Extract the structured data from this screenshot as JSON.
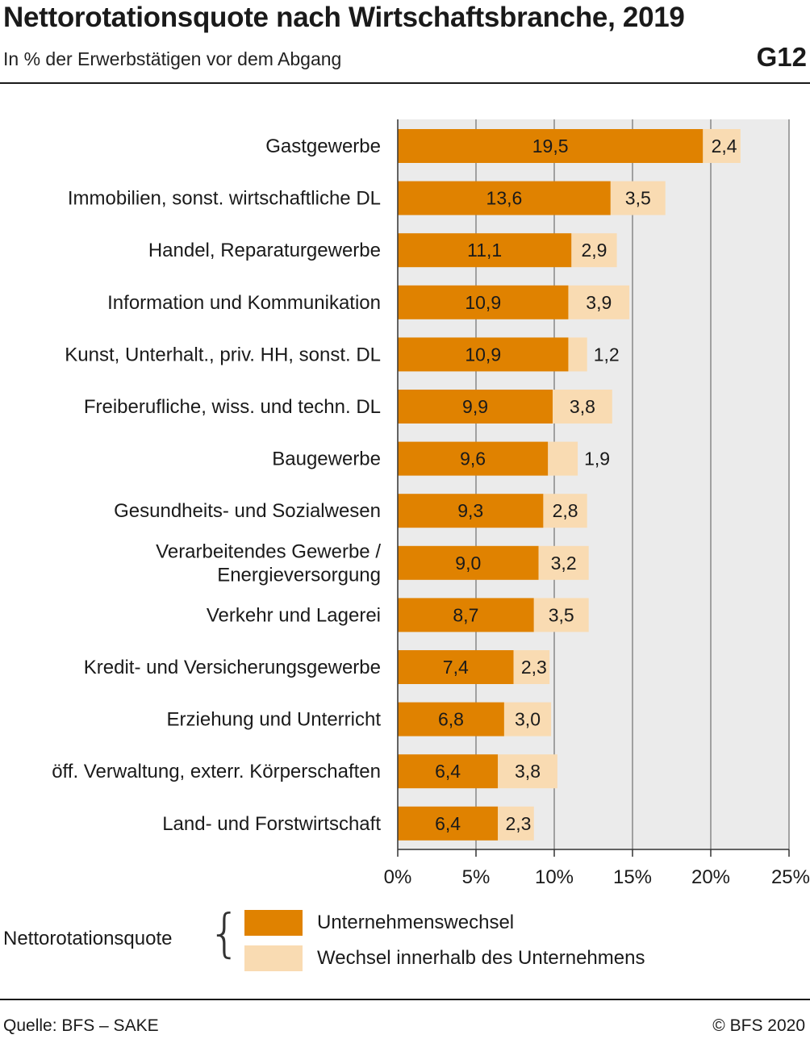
{
  "header": {
    "title": "Nettorotationsquote nach Wirtschaftsbranche, 2019",
    "subtitle": "In % der Erwerbstätigen vor dem Abgang",
    "figure_id": "G12"
  },
  "legend": {
    "title": "Nettorotationsquote",
    "items": [
      "Unternehmenswechsel",
      "Wechsel innerhalb des Unternehmens"
    ]
  },
  "footer": {
    "source": "Quelle: BFS – SAKE",
    "copyright": "© BFS 2020"
  },
  "colors": {
    "series1": "#e08200",
    "series2": "#f9dbb2",
    "plot_background": "#ebebeb",
    "grid": "#888888"
  },
  "chart_data": {
    "type": "bar",
    "orientation": "horizontal",
    "stacked": true,
    "categories": [
      [
        "Gastgewerbe"
      ],
      [
        "Immobilien, sonst. wirtschaftliche DL"
      ],
      [
        "Handel, Reparaturgewerbe"
      ],
      [
        "Information und Kommunikation"
      ],
      [
        "Kunst, Unterhalt., priv. HH, sonst. DL"
      ],
      [
        "Freiberufliche, wiss. und techn. DL"
      ],
      [
        "Baugewerbe"
      ],
      [
        "Gesundheits- und Sozialwesen"
      ],
      [
        "Verarbeitendes Gewerbe /",
        "Energieversorgung"
      ],
      [
        "Verkehr und Lagerei"
      ],
      [
        "Kredit- und Versicherungsgewerbe"
      ],
      [
        "Erziehung und Unterricht"
      ],
      [
        "öff. Verwaltung, exterr. Körperschaften"
      ],
      [
        "Land- und Forstwirtschaft"
      ]
    ],
    "series": [
      {
        "name": "Unternehmenswechsel",
        "values": [
          19.5,
          13.6,
          11.1,
          10.9,
          10.9,
          9.9,
          9.6,
          9.3,
          9.0,
          8.7,
          7.4,
          6.8,
          6.4,
          6.4
        ],
        "labels": [
          "19,5",
          "13,6",
          "11,1",
          "10,9",
          "10,9",
          "9,9",
          "9,6",
          "9,3",
          "9,0",
          "8,7",
          "7,4",
          "6,8",
          "6,4",
          "6,4"
        ]
      },
      {
        "name": "Wechsel innerhalb des Unternehmens",
        "values": [
          2.4,
          3.5,
          2.9,
          3.9,
          1.2,
          3.8,
          1.9,
          2.8,
          3.2,
          3.5,
          2.3,
          3.0,
          3.8,
          2.3
        ],
        "labels": [
          "2,4",
          "3,5",
          "2,9",
          "3,9",
          "1,2",
          "3,8",
          "1,9",
          "2,8",
          "3,2",
          "3,5",
          "2,3",
          "3,0",
          "3,8",
          "2,3"
        ]
      }
    ],
    "x_ticks": [
      0,
      5,
      10,
      15,
      20,
      25
    ],
    "x_tick_labels": [
      "0%",
      "5%",
      "10%",
      "15%",
      "20%",
      "25%"
    ],
    "xlim": [
      0,
      25
    ],
    "grid": true
  }
}
